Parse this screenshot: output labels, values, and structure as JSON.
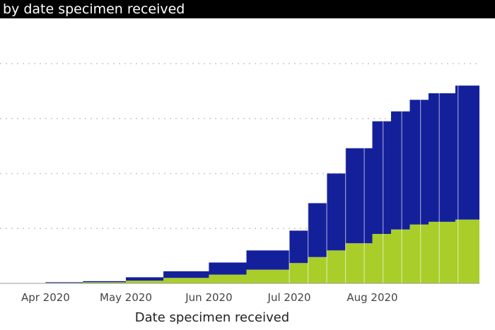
{
  "title_bar": {
    "text": "by date specimen received"
  },
  "chart_data": {
    "type": "area",
    "stacked": true,
    "title": "by date specimen received",
    "xlabel": "Date specimen received",
    "ylabel": "",
    "x_ticks": [
      "Apr 2020",
      "May 2020",
      "Jun 2020",
      "Jul 2020",
      "Aug 2020"
    ],
    "x": [
      "2020-03-15",
      "2020-04-01",
      "2020-04-15",
      "2020-05-01",
      "2020-05-15",
      "2020-06-01",
      "2020-06-15",
      "2020-07-01",
      "2020-07-08",
      "2020-07-15",
      "2020-07-22",
      "2020-08-01",
      "2020-08-08",
      "2020-08-15",
      "2020-08-22",
      "2020-09-01",
      "2020-09-10"
    ],
    "ylim": [
      0,
      40
    ],
    "y_gridlines": [
      10,
      20,
      30,
      40
    ],
    "grid": true,
    "series": [
      {
        "color": "#a9ce2a",
        "values": [
          0,
          0.1,
          0.2,
          0.5,
          1.0,
          1.6,
          2.5,
          3.7,
          4.8,
          6.0,
          7.3,
          9.0,
          9.8,
          10.7,
          11.2,
          11.6,
          12.4
        ]
      },
      {
        "color": "#14209a",
        "values": [
          0,
          0.1,
          0.2,
          0.6,
          1.2,
          2.2,
          3.5,
          5.9,
          9.8,
          14.0,
          17.3,
          20.5,
          21.5,
          22.7,
          23.4,
          24.4,
          24.7
        ]
      }
    ]
  }
}
